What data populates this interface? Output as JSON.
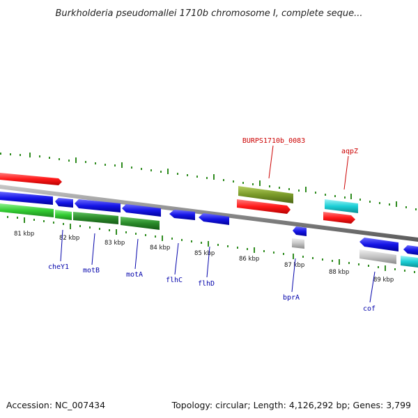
{
  "title": "Burkholderia pseudomallei 1710b chromosome I, complete seque...",
  "footer": {
    "accession": "Accession: NC_007434",
    "topology": "Topology: circular; Length: 4,126,292 bp; Genes: 3,799"
  },
  "colors": {
    "backbone": "#8a8a8a",
    "tick": "#2e8b1e",
    "red": "#ff1a1a",
    "blue": "#1515e6",
    "green_light": "#33cc33",
    "green_dark": "#2a8a2a",
    "olive": "#7a9a2a",
    "cyan": "#1ccfd6",
    "gray": "#c4c4c4",
    "label_blue": "#0000aa",
    "label_red": "#cc0000"
  },
  "kbp_labels": [
    "81 kbp",
    "82 kbp",
    "83 kbp",
    "84 kbp",
    "85 kbp",
    "86 kbp",
    "87 kbp",
    "88 kbp",
    "89 kbp"
  ],
  "gene_labels": [
    {
      "text": "cheY1",
      "color": "blue"
    },
    {
      "text": "motB",
      "color": "blue"
    },
    {
      "text": "motA",
      "color": "blue"
    },
    {
      "text": "flhC",
      "color": "blue"
    },
    {
      "text": "flhD",
      "color": "blue"
    },
    {
      "text": "bprA",
      "color": "blue"
    },
    {
      "text": "cof",
      "color": "blue"
    },
    {
      "text": "BURPS1710b_0083",
      "color": "red"
    },
    {
      "text": "aqpZ",
      "color": "red"
    }
  ]
}
